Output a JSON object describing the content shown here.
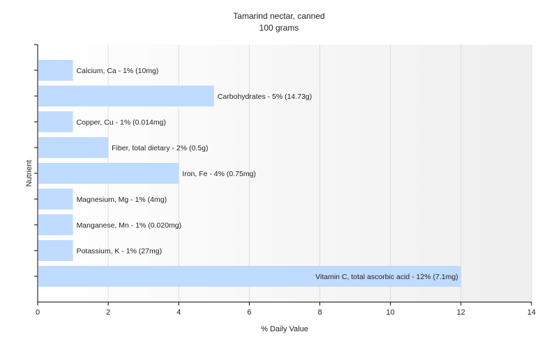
{
  "chart_data": {
    "type": "bar",
    "orientation": "horizontal",
    "title": "Tamarind nectar, canned",
    "subtitle": "100 grams",
    "xlabel": "% Daily Value",
    "ylabel": "Nutrient",
    "xlim": [
      0,
      14
    ],
    "xticks": [
      0,
      2,
      4,
      6,
      8,
      10,
      12,
      14
    ],
    "grid": true,
    "categories": [
      "Calcium, Ca",
      "Carbohydrates",
      "Copper, Cu",
      "Fiber, total dietary",
      "Iron, Fe",
      "Magnesium, Mg",
      "Manganese, Mn",
      "Potassium, K",
      "Vitamin C, total ascorbic acid"
    ],
    "values": [
      1,
      5,
      1,
      2,
      4,
      1,
      1,
      1,
      12
    ],
    "labels": [
      "Calcium, Ca - 1% (10mg)",
      "Carbohydrates - 5% (14.73g)",
      "Copper, Cu - 1% (0.014mg)",
      "Fiber, total dietary - 2% (0.5g)",
      "Iron, Fe - 4% (0.75mg)",
      "Magnesium, Mg - 1% (4mg)",
      "Manganese, Mn - 1% (0.020mg)",
      "Potassium, K - 1% (27mg)",
      "Vitamin C, total ascorbic acid - 12% (7.1mg)"
    ],
    "colors": {
      "bar": "#bfdbff",
      "grid": "#dcdcdc",
      "axis": "#000000",
      "plot_bg_start": "#ffffff",
      "plot_bg_end": "#f0f0f0"
    }
  }
}
